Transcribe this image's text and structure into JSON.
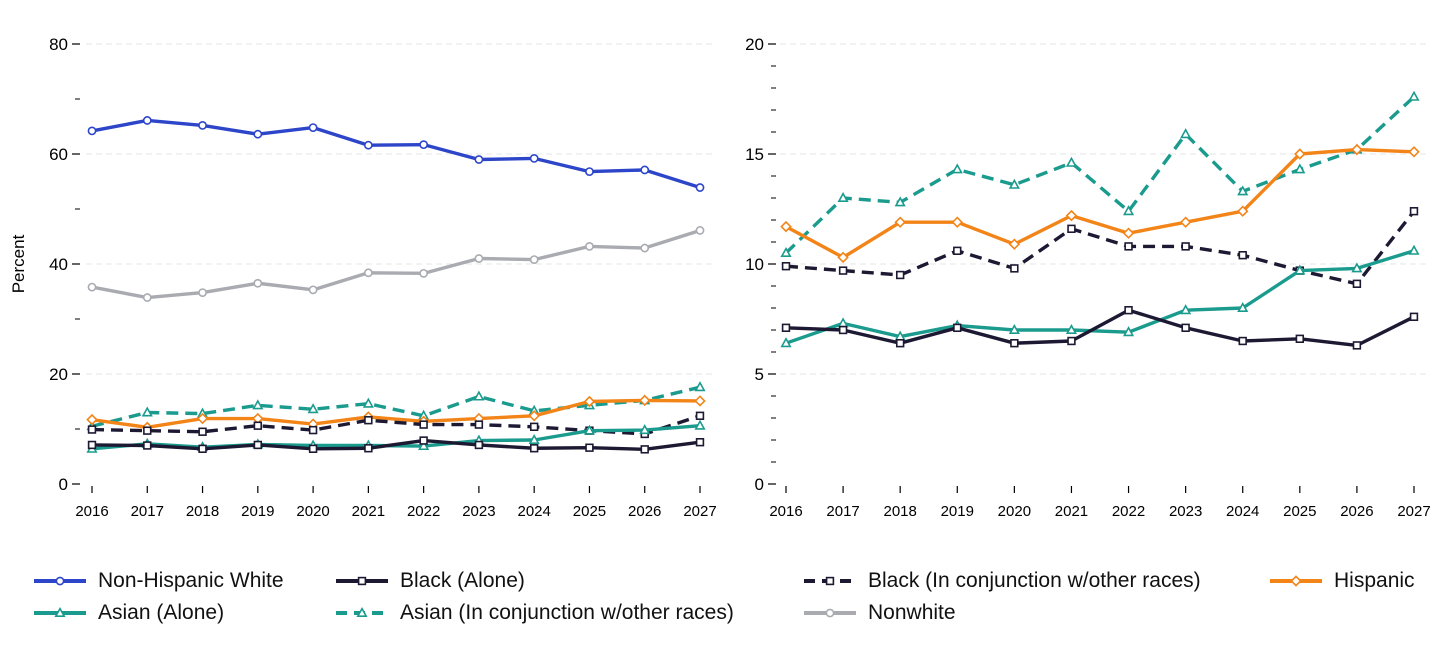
{
  "chart_data": [
    {
      "type": "line",
      "xlabel": "",
      "ylabel": "Percent",
      "ylim": [
        0,
        80
      ],
      "yticks": [
        "0",
        "20",
        "40",
        "60",
        "80"
      ],
      "grid": true,
      "x": [
        "2016",
        "2017",
        "2018",
        "2019",
        "2020",
        "2021",
        "2022",
        "2023",
        "2024",
        "2025",
        "2026",
        "2027"
      ],
      "series": [
        {
          "name": "Non-Hispanic White",
          "color": "#2d45c8",
          "dash": false,
          "marker": "circle",
          "values": [
            64.2,
            66.1,
            65.2,
            63.6,
            64.8,
            61.6,
            61.7,
            59.0,
            59.2,
            56.8,
            57.1,
            53.9
          ]
        },
        {
          "name": "Nonwhite",
          "color": "#a9abb1",
          "dash": false,
          "marker": "circle",
          "values": [
            35.8,
            33.9,
            34.8,
            36.5,
            35.3,
            38.4,
            38.3,
            41.0,
            40.8,
            43.2,
            42.9,
            46.1
          ]
        },
        {
          "name": "Asian (In conjunction w/other races)",
          "color": "#1a9b8e",
          "dash": true,
          "marker": "triangle",
          "values": [
            10.5,
            13.0,
            12.8,
            14.3,
            13.6,
            14.6,
            12.4,
            15.9,
            13.3,
            14.3,
            15.2,
            17.6
          ]
        },
        {
          "name": "Hispanic",
          "color": "#f28418",
          "dash": false,
          "marker": "diamond",
          "values": [
            11.7,
            10.3,
            11.9,
            11.9,
            10.9,
            12.2,
            11.4,
            11.9,
            12.4,
            15.0,
            15.2,
            15.1
          ]
        },
        {
          "name": "Black (In conjunction w/other races)",
          "color": "#1d1933",
          "dash": true,
          "marker": "square",
          "values": [
            9.9,
            9.7,
            9.5,
            10.6,
            9.8,
            11.6,
            10.8,
            10.8,
            10.4,
            9.7,
            9.1,
            12.4
          ]
        },
        {
          "name": "Asian (Alone)",
          "color": "#1a9b8e",
          "dash": false,
          "marker": "triangle",
          "values": [
            6.4,
            7.3,
            6.7,
            7.2,
            7.0,
            7.0,
            6.9,
            7.9,
            8.0,
            9.7,
            9.8,
            10.6
          ]
        },
        {
          "name": "Black (Alone)",
          "color": "#1d1933",
          "dash": false,
          "marker": "square",
          "values": [
            7.1,
            7.0,
            6.4,
            7.1,
            6.4,
            6.5,
            7.9,
            7.1,
            6.5,
            6.6,
            6.3,
            7.6
          ]
        }
      ]
    },
    {
      "type": "line",
      "xlabel": "",
      "ylabel": "",
      "ylim": [
        0,
        20
      ],
      "yticks": [
        "0",
        "5",
        "10",
        "15",
        "20"
      ],
      "grid": true,
      "x": [
        "2016",
        "2017",
        "2018",
        "2019",
        "2020",
        "2021",
        "2022",
        "2023",
        "2024",
        "2025",
        "2026",
        "2027"
      ],
      "series": [
        {
          "name": "Asian (In conjunction w/other races)",
          "color": "#1a9b8e",
          "dash": true,
          "marker": "triangle",
          "values": [
            10.5,
            13.0,
            12.8,
            14.3,
            13.6,
            14.6,
            12.4,
            15.9,
            13.3,
            14.3,
            15.2,
            17.6
          ]
        },
        {
          "name": "Hispanic",
          "color": "#f28418",
          "dash": false,
          "marker": "diamond",
          "values": [
            11.7,
            10.3,
            11.9,
            11.9,
            10.9,
            12.2,
            11.4,
            11.9,
            12.4,
            15.0,
            15.2,
            15.1
          ]
        },
        {
          "name": "Black (In conjunction w/other races)",
          "color": "#1d1933",
          "dash": true,
          "marker": "square",
          "values": [
            9.9,
            9.7,
            9.5,
            10.6,
            9.8,
            11.6,
            10.8,
            10.8,
            10.4,
            9.7,
            9.1,
            12.4
          ]
        },
        {
          "name": "Asian (Alone)",
          "color": "#1a9b8e",
          "dash": false,
          "marker": "triangle",
          "values": [
            6.4,
            7.3,
            6.7,
            7.2,
            7.0,
            7.0,
            6.9,
            7.9,
            8.0,
            9.7,
            9.8,
            10.6
          ]
        },
        {
          "name": "Black (Alone)",
          "color": "#1d1933",
          "dash": false,
          "marker": "square",
          "values": [
            7.1,
            7.0,
            6.4,
            7.1,
            6.4,
            6.5,
            7.9,
            7.1,
            6.5,
            6.6,
            6.3,
            7.6
          ]
        }
      ]
    }
  ],
  "legend": {
    "items": [
      {
        "label": "Non-Hispanic White",
        "color": "#2d45c8",
        "dash": false,
        "marker": "circle-icon"
      },
      {
        "label": "Black (Alone)",
        "color": "#1d1933",
        "dash": false,
        "marker": "square-icon"
      },
      {
        "label": "Black (In conjunction w/other races)",
        "color": "#1d1933",
        "dash": true,
        "marker": "square-icon"
      },
      {
        "label": "Hispanic",
        "color": "#f28418",
        "dash": false,
        "marker": "diamond-icon"
      },
      {
        "label": "Asian (Alone)",
        "color": "#1a9b8e",
        "dash": false,
        "marker": "triangle-icon"
      },
      {
        "label": "Asian (In conjunction w/other races)",
        "color": "#1a9b8e",
        "dash": true,
        "marker": "triangle-icon"
      },
      {
        "label": "Nonwhite",
        "color": "#a9abb1",
        "dash": false,
        "marker": "circle-icon"
      }
    ]
  }
}
